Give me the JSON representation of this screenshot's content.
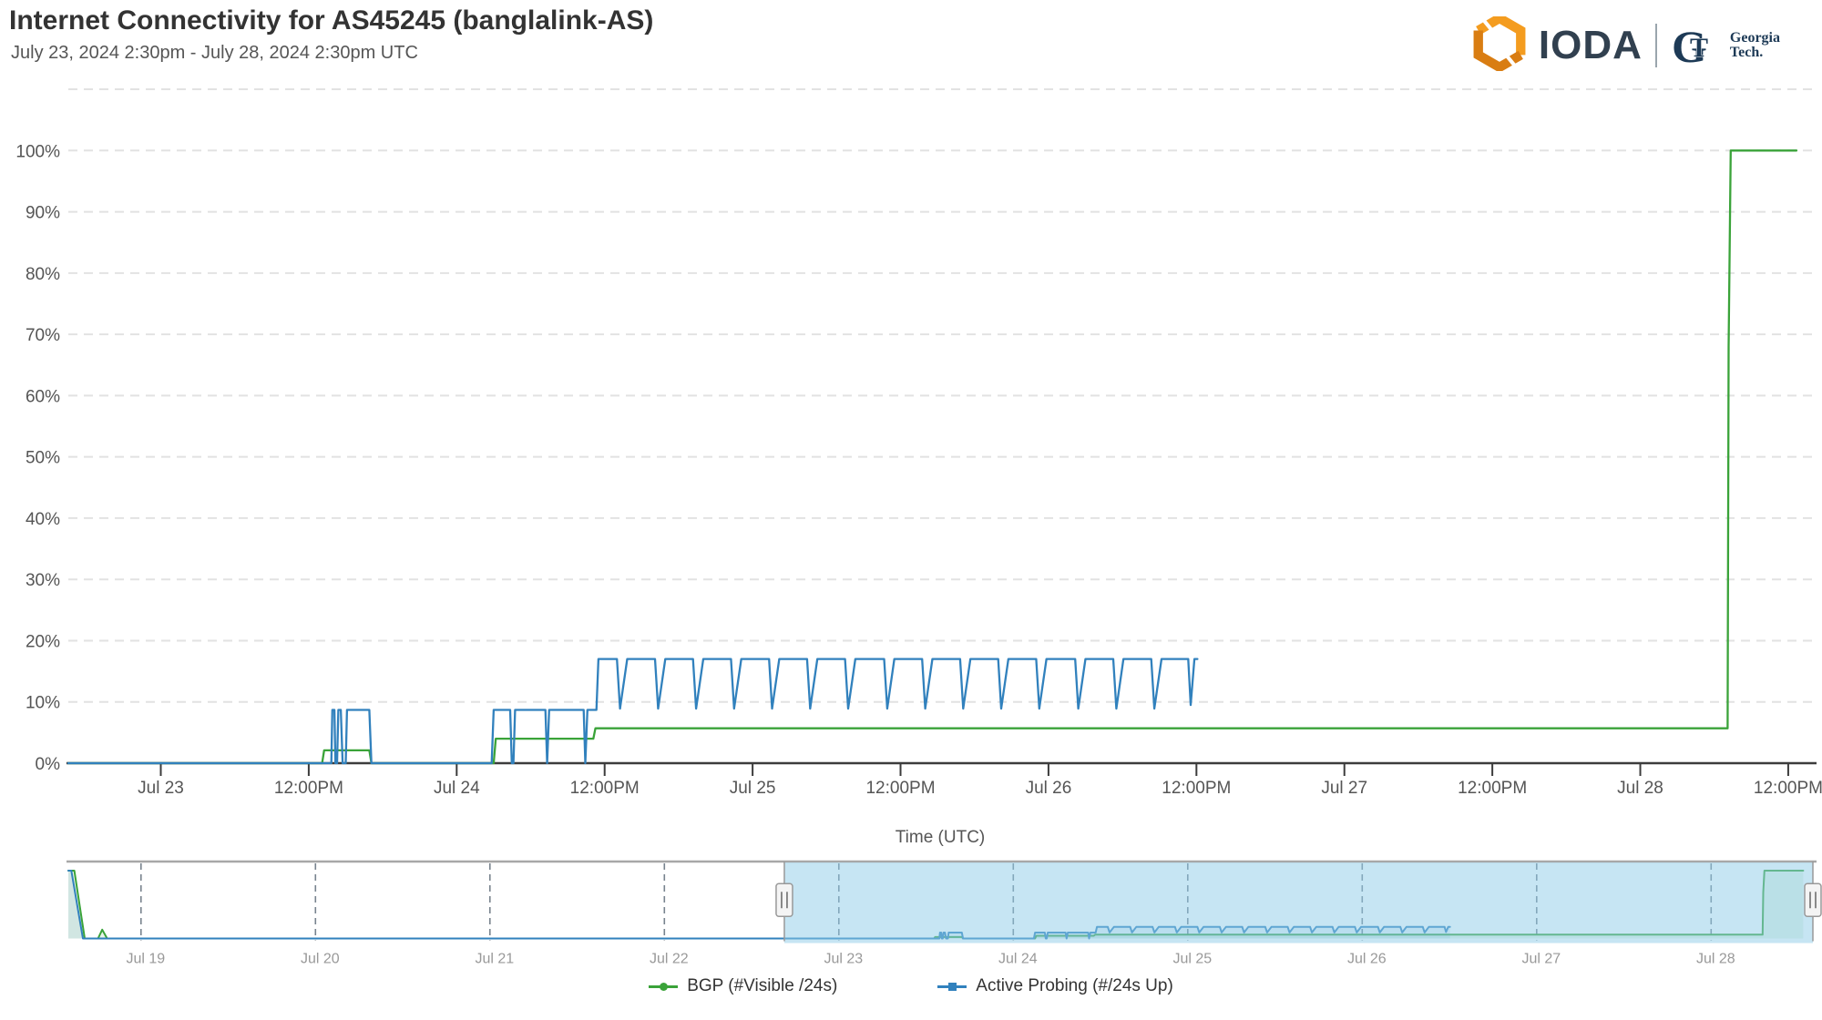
{
  "header": {
    "title": "Internet Connectivity for AS45245 (banglalink-AS)",
    "subtitle": "July 23, 2024 2:30pm - July 28, 2024 2:30pm UTC"
  },
  "logo": {
    "ioda_word": "IODA",
    "gt_mark_g": "G",
    "gt_mark_t": "T",
    "gt_line1": "Georgia",
    "gt_line2": "Tech.",
    "hex_orange_light": "#f49c1f",
    "hex_orange_dark": "#d97d12",
    "ioda_navy": "#31404f",
    "gt_navy": "#1d3a56"
  },
  "axes": {
    "x_title": "Time (UTC)"
  },
  "chart_data": {
    "type": "line",
    "title": "Internet Connectivity for AS45245 (banglalink-AS)",
    "grid": true,
    "legend_position": "bottom-center",
    "main": {
      "x_domain": [
        "2024-07-22T16:30:00Z",
        "2024-07-28T14:00:00Z"
      ],
      "y_range_percent": [
        0,
        110
      ],
      "y_labels": [
        {
          "v": 0,
          "label": "0%"
        },
        {
          "v": 10,
          "label": "10%"
        },
        {
          "v": 20,
          "label": "20%"
        },
        {
          "v": 30,
          "label": "30%"
        },
        {
          "v": 40,
          "label": "40%"
        },
        {
          "v": 50,
          "label": "50%"
        },
        {
          "v": 60,
          "label": "60%"
        },
        {
          "v": 70,
          "label": "70%"
        },
        {
          "v": 80,
          "label": "80%"
        },
        {
          "v": 90,
          "label": "90%"
        },
        {
          "v": 100,
          "label": "100%"
        }
      ],
      "x_ticks": [
        {
          "t": "2024-07-23T00:00:00Z",
          "label": "Jul 23"
        },
        {
          "t": "2024-07-23T12:00:00Z",
          "label": "12:00PM"
        },
        {
          "t": "2024-07-24T00:00:00Z",
          "label": "Jul 24"
        },
        {
          "t": "2024-07-24T12:00:00Z",
          "label": "12:00PM"
        },
        {
          "t": "2024-07-25T00:00:00Z",
          "label": "Jul 25"
        },
        {
          "t": "2024-07-25T12:00:00Z",
          "label": "12:00PM"
        },
        {
          "t": "2024-07-26T00:00:00Z",
          "label": "Jul 26"
        },
        {
          "t": "2024-07-26T12:00:00Z",
          "label": "12:00PM"
        },
        {
          "t": "2024-07-27T00:00:00Z",
          "label": "Jul 27"
        },
        {
          "t": "2024-07-27T12:00:00Z",
          "label": "12:00PM"
        },
        {
          "t": "2024-07-28T00:00:00Z",
          "label": "Jul 28"
        },
        {
          "t": "2024-07-28T12:00:00Z",
          "label": "12:00PM"
        }
      ]
    },
    "nav": {
      "x_domain": [
        "2024-07-18T14:00:00Z",
        "2024-07-28T14:00:00Z"
      ],
      "selection": {
        "start": "2024-07-22T16:30:00Z",
        "end": "2024-07-28T14:00:00Z"
      },
      "x_ticks": [
        {
          "t": "2024-07-19T00:00:00Z",
          "label": "Jul 19"
        },
        {
          "t": "2024-07-20T00:00:00Z",
          "label": "Jul 20"
        },
        {
          "t": "2024-07-21T00:00:00Z",
          "label": "Jul 21"
        },
        {
          "t": "2024-07-22T00:00:00Z",
          "label": "Jul 22"
        },
        {
          "t": "2024-07-23T00:00:00Z",
          "label": "Jul 23"
        },
        {
          "t": "2024-07-24T00:00:00Z",
          "label": "Jul 24"
        },
        {
          "t": "2024-07-25T00:00:00Z",
          "label": "Jul 25"
        },
        {
          "t": "2024-07-26T00:00:00Z",
          "label": "Jul 26"
        },
        {
          "t": "2024-07-27T00:00:00Z",
          "label": "Jul 27"
        },
        {
          "t": "2024-07-28T00:00:00Z",
          "label": "Jul 28"
        }
      ],
      "mask_color": "#8ecbe8",
      "mask_opacity": 0.5
    },
    "series": [
      {
        "name": "BGP (#Visible /24s)",
        "color": "#3aa339",
        "marker": "circle",
        "unit": "percent",
        "points": [
          [
            "2024-07-18T14:00:00Z",
            100
          ],
          [
            "2024-07-18T14:50:00Z",
            100
          ],
          [
            "2024-07-18T16:15:00Z",
            0
          ],
          [
            "2024-07-18T18:05:00Z",
            0
          ],
          [
            "2024-07-18T18:40:00Z",
            13
          ],
          [
            "2024-07-18T19:20:00Z",
            0
          ],
          [
            "2024-07-23T13:05:00Z",
            0
          ],
          [
            "2024-07-23T13:15:00Z",
            2.1
          ],
          [
            "2024-07-23T16:55:00Z",
            2.1
          ],
          [
            "2024-07-23T17:05:00Z",
            0
          ],
          [
            "2024-07-24T03:00:00Z",
            0
          ],
          [
            "2024-07-24T03:10:00Z",
            4
          ],
          [
            "2024-07-24T11:05:00Z",
            4
          ],
          [
            "2024-07-24T11:15:00Z",
            5.7
          ],
          [
            "2024-07-28T07:05:00Z",
            5.7
          ],
          [
            "2024-07-28T07:10:00Z",
            68
          ],
          [
            "2024-07-28T07:20:00Z",
            100
          ],
          [
            "2024-07-28T12:40:00Z",
            100
          ]
        ]
      },
      {
        "name": "Active Probing (#/24s Up)",
        "color": "#3181bd",
        "marker": "square",
        "unit": "percent",
        "points": [
          [
            "2024-07-18T14:00:00Z",
            100
          ],
          [
            "2024-07-18T14:25:00Z",
            100
          ],
          [
            "2024-07-18T16:00:00Z",
            0
          ],
          [
            "2024-07-23T13:50:00Z",
            0
          ],
          [
            "2024-07-23T13:55:00Z",
            8.7
          ],
          [
            "2024-07-23T14:05:00Z",
            8.7
          ],
          [
            "2024-07-23T14:10:00Z",
            0
          ],
          [
            "2024-07-23T14:18:00Z",
            0
          ],
          [
            "2024-07-23T14:24:00Z",
            8.7
          ],
          [
            "2024-07-23T14:36:00Z",
            8.7
          ],
          [
            "2024-07-23T14:45:00Z",
            0
          ],
          [
            "2024-07-23T15:00:00Z",
            0
          ],
          [
            "2024-07-23T15:06:00Z",
            8.7
          ],
          [
            "2024-07-23T16:55:00Z",
            8.7
          ],
          [
            "2024-07-23T17:05:00Z",
            0
          ],
          [
            "2024-07-24T02:50:00Z",
            0
          ],
          [
            "2024-07-24T03:00:00Z",
            8.7
          ],
          [
            "2024-07-24T04:20:00Z",
            8.7
          ],
          [
            "2024-07-24T04:28:00Z",
            0
          ],
          [
            "2024-07-24T04:36:00Z",
            0
          ],
          [
            "2024-07-24T04:44:00Z",
            8.7
          ],
          [
            "2024-07-24T07:12:00Z",
            8.7
          ],
          [
            "2024-07-24T07:20:00Z",
            0
          ],
          [
            "2024-07-24T07:30:00Z",
            8.7
          ],
          [
            "2024-07-24T10:18:00Z",
            8.7
          ],
          [
            "2024-07-24T10:26:00Z",
            0
          ],
          [
            "2024-07-24T10:36:00Z",
            8.7
          ],
          [
            "2024-07-24T11:20:00Z",
            8.7
          ],
          [
            "2024-07-24T11:30:00Z",
            17
          ],
          [
            "2024-07-24T13:00:00Z",
            17
          ],
          [
            "2024-07-24T13:15:00Z",
            8.9
          ],
          [
            "2024-07-24T13:50:00Z",
            17
          ],
          [
            "2024-07-24T16:05:00Z",
            17
          ],
          [
            "2024-07-24T16:20:00Z",
            8.9
          ],
          [
            "2024-07-24T16:55:00Z",
            17
          ],
          [
            "2024-07-24T19:10:00Z",
            17
          ],
          [
            "2024-07-24T19:25:00Z",
            8.9
          ],
          [
            "2024-07-24T20:00:00Z",
            17
          ],
          [
            "2024-07-24T22:15:00Z",
            17
          ],
          [
            "2024-07-24T22:30:00Z",
            8.9
          ],
          [
            "2024-07-24T23:05:00Z",
            17
          ],
          [
            "2024-07-25T01:20:00Z",
            17
          ],
          [
            "2024-07-25T01:35:00Z",
            8.9
          ],
          [
            "2024-07-25T02:10:00Z",
            17
          ],
          [
            "2024-07-25T04:25:00Z",
            17
          ],
          [
            "2024-07-25T04:40:00Z",
            8.9
          ],
          [
            "2024-07-25T05:15:00Z",
            17
          ],
          [
            "2024-07-25T07:30:00Z",
            17
          ],
          [
            "2024-07-25T07:45:00Z",
            8.9
          ],
          [
            "2024-07-25T08:20:00Z",
            17
          ],
          [
            "2024-07-25T10:40:00Z",
            17
          ],
          [
            "2024-07-25T10:55:00Z",
            8.9
          ],
          [
            "2024-07-25T11:30:00Z",
            17
          ],
          [
            "2024-07-25T13:45:00Z",
            17
          ],
          [
            "2024-07-25T14:00:00Z",
            8.9
          ],
          [
            "2024-07-25T14:35:00Z",
            17
          ],
          [
            "2024-07-25T16:50:00Z",
            17
          ],
          [
            "2024-07-25T17:05:00Z",
            8.9
          ],
          [
            "2024-07-25T17:40:00Z",
            17
          ],
          [
            "2024-07-25T19:55:00Z",
            17
          ],
          [
            "2024-07-25T20:10:00Z",
            8.9
          ],
          [
            "2024-07-25T20:45:00Z",
            17
          ],
          [
            "2024-07-25T23:00:00Z",
            17
          ],
          [
            "2024-07-25T23:15:00Z",
            8.9
          ],
          [
            "2024-07-25T23:50:00Z",
            17
          ],
          [
            "2024-07-26T02:10:00Z",
            17
          ],
          [
            "2024-07-26T02:25:00Z",
            8.9
          ],
          [
            "2024-07-26T03:00:00Z",
            17
          ],
          [
            "2024-07-26T05:15:00Z",
            17
          ],
          [
            "2024-07-26T05:30:00Z",
            8.9
          ],
          [
            "2024-07-26T06:05:00Z",
            17
          ],
          [
            "2024-07-26T08:20:00Z",
            17
          ],
          [
            "2024-07-26T08:35:00Z",
            8.9
          ],
          [
            "2024-07-26T09:10:00Z",
            17
          ],
          [
            "2024-07-26T11:20:00Z",
            17
          ],
          [
            "2024-07-26T11:32:00Z",
            9.5
          ],
          [
            "2024-07-26T11:50:00Z",
            17
          ],
          [
            "2024-07-26T12:05:00Z",
            17
          ]
        ]
      }
    ]
  }
}
